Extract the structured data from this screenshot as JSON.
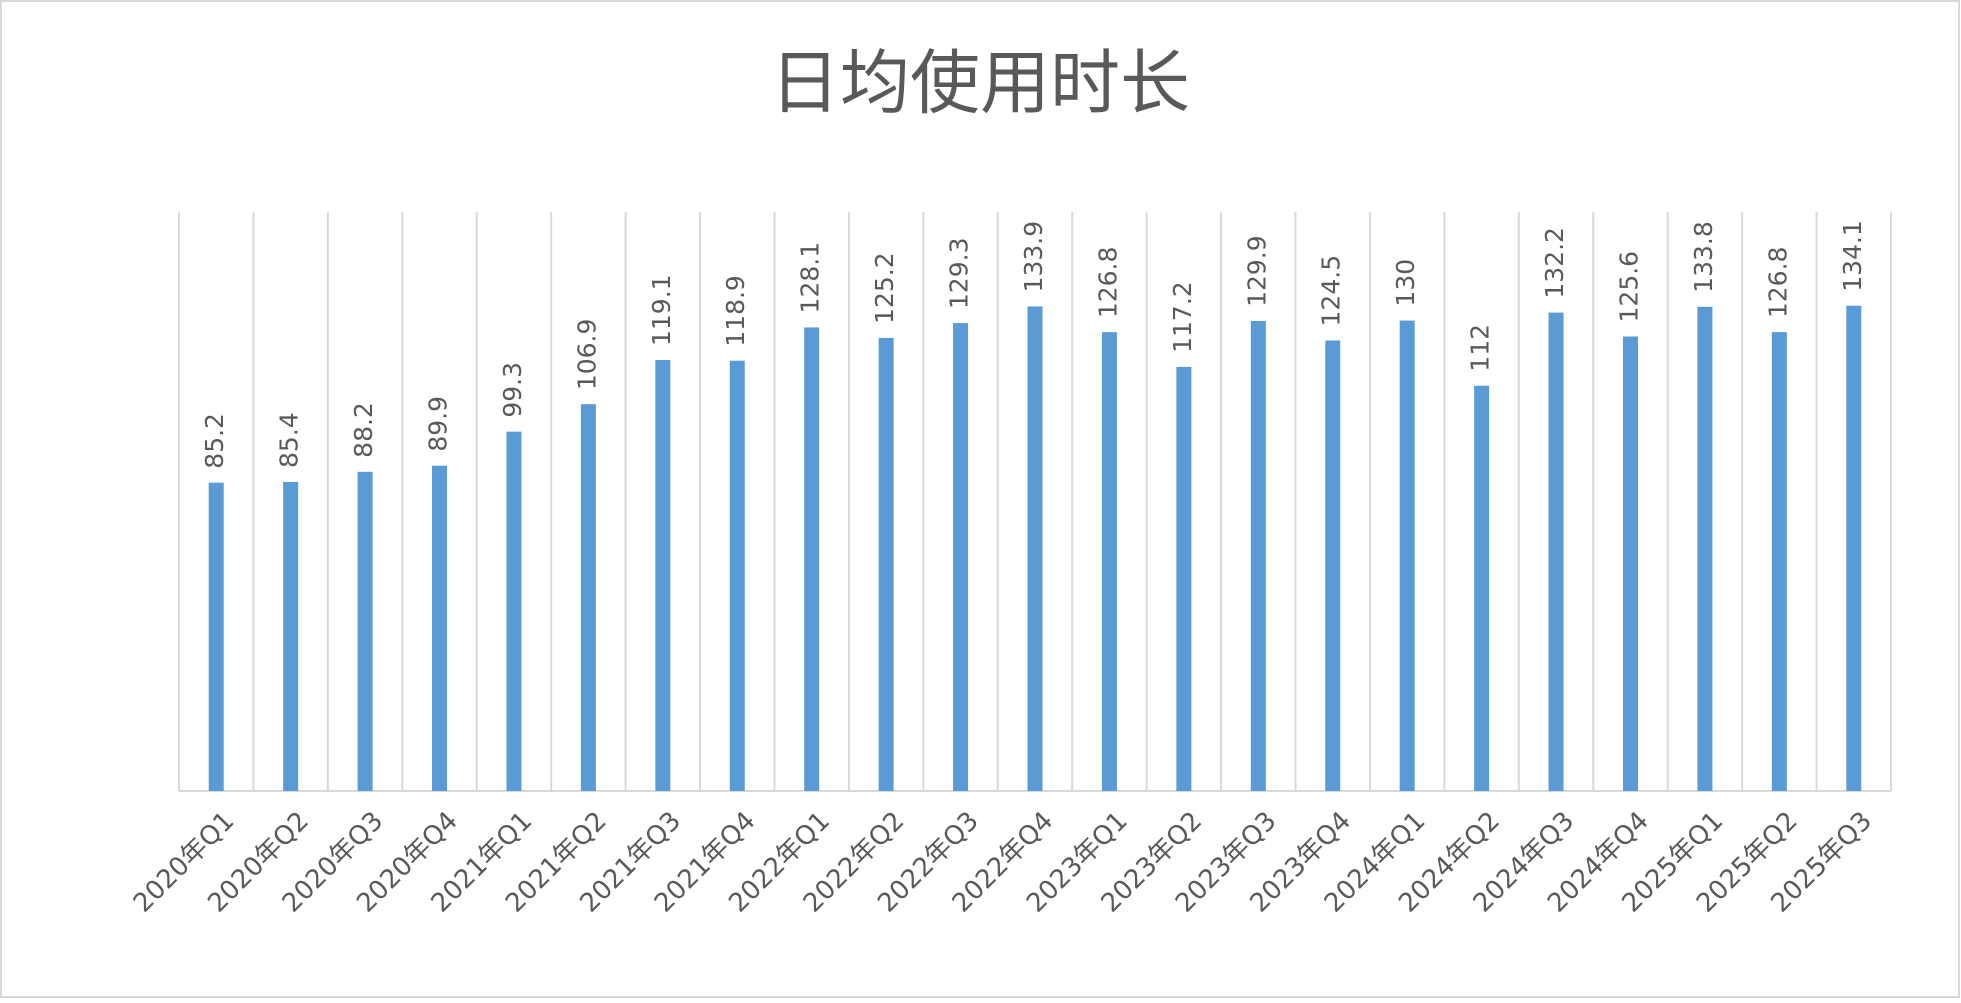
{
  "chart_data": {
    "type": "bar",
    "title": "日均使用时长",
    "categories": [
      "2020年Q1",
      "2020年Q2",
      "2020年Q3",
      "2020年Q4",
      "2021年Q1",
      "2021年Q2",
      "2021年Q3",
      "2021年Q4",
      "2022年Q1",
      "2022年Q2",
      "2022年Q3",
      "2022年Q4",
      "2023年Q1",
      "2023年Q2",
      "2023年Q3",
      "2023年Q4",
      "2024年Q1",
      "2024年Q2",
      "2024年Q3",
      "2024年Q4",
      "2025年Q1",
      "2025年Q2",
      "2025年Q3"
    ],
    "values": [
      85.2,
      85.4,
      88.2,
      89.9,
      99.3,
      106.9,
      119.1,
      118.9,
      128.1,
      125.2,
      129.3,
      133.9,
      126.8,
      117.2,
      129.9,
      124.5,
      130,
      112,
      132.2,
      125.6,
      133.8,
      126.8,
      134.1
    ],
    "color": "#5b9bd5",
    "ylim": [
      0,
      160
    ],
    "grid": true
  }
}
